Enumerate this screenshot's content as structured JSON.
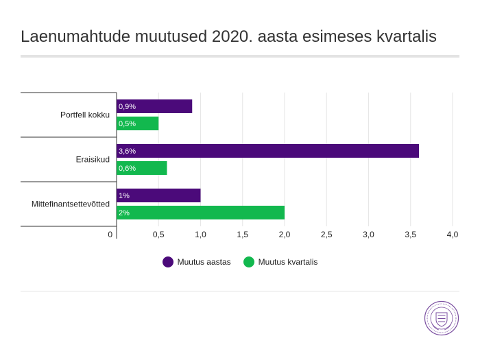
{
  "chart_data": {
    "type": "bar",
    "orientation": "horizontal",
    "title": "Laenumahtude muutused 2020. aasta esimeses kvartalis",
    "categories": [
      "Portfell kokku",
      "Eraisikud",
      "Mittefinantsettevõtted"
    ],
    "series": [
      {
        "name": "Muutus aastas",
        "color": "#4b0a7a",
        "values": [
          0.9,
          3.6,
          1.0
        ],
        "labels": [
          "0,9%",
          "3,6%",
          "1%"
        ]
      },
      {
        "name": "Muutus kvartalis",
        "color": "#12b84e",
        "values": [
          0.5,
          0.6,
          2.0
        ],
        "labels": [
          "0,5%",
          "0,6%",
          "2%"
        ]
      }
    ],
    "xlim": [
      0,
      4
    ],
    "xticks": [
      0,
      0.5,
      1.0,
      1.5,
      2.0,
      2.5,
      3.0,
      3.5,
      4.0
    ],
    "xtick_labels": [
      "0",
      "0,5",
      "1,0",
      "1,5",
      "2,0",
      "2,5",
      "3,0",
      "3,5",
      "4,0"
    ],
    "grid": true,
    "legend_position": "bottom"
  }
}
